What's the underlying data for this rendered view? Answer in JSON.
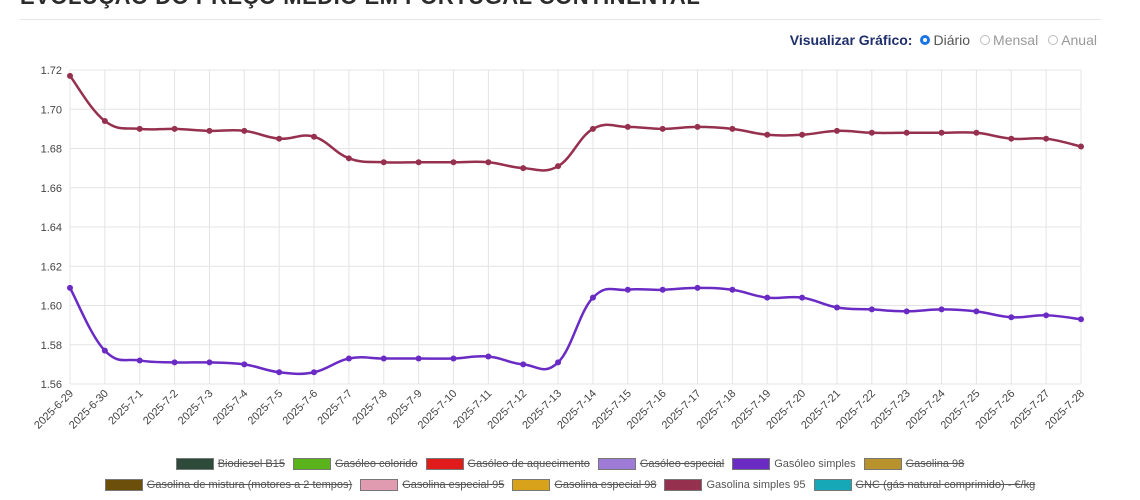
{
  "page": {
    "title": "EVOLUÇÃO DO PREÇO MÉDIO EM PORTUGAL CONTINENTAL",
    "view_label": "Visualizar Gráfico:",
    "view_options": [
      {
        "label": "Diário",
        "checked": true
      },
      {
        "label": "Mensal",
        "checked": false
      },
      {
        "label": "Anual",
        "checked": false
      }
    ]
  },
  "chart_data": {
    "type": "line",
    "x": [
      "2025-6-29",
      "2025-6-30",
      "2025-7-1",
      "2025-7-2",
      "2025-7-3",
      "2025-7-4",
      "2025-7-5",
      "2025-7-6",
      "2025-7-7",
      "2025-7-8",
      "2025-7-9",
      "2025-7-10",
      "2025-7-11",
      "2025-7-12",
      "2025-7-13",
      "2025-7-14",
      "2025-7-15",
      "2025-7-16",
      "2025-7-17",
      "2025-7-18",
      "2025-7-19",
      "2025-7-20",
      "2025-7-21",
      "2025-7-22",
      "2025-7-23",
      "2025-7-24",
      "2025-7-25",
      "2025-7-26",
      "2025-7-27",
      "2025-7-28"
    ],
    "ylim": [
      1.56,
      1.72
    ],
    "yticks": [
      "1.56",
      "1.58",
      "1.60",
      "1.62",
      "1.64",
      "1.66",
      "1.68",
      "1.70",
      "1.72"
    ],
    "grid": true,
    "legend_position": "bottom",
    "series": [
      {
        "name": "Gasolina simples 95",
        "color": "#96304f",
        "values": [
          1.717,
          1.694,
          1.69,
          1.69,
          1.689,
          1.689,
          1.685,
          1.686,
          1.675,
          1.673,
          1.673,
          1.673,
          1.673,
          1.67,
          1.671,
          1.69,
          1.691,
          1.69,
          1.691,
          1.69,
          1.687,
          1.687,
          1.689,
          1.688,
          1.688,
          1.688,
          1.688,
          1.685,
          1.685,
          1.681
        ]
      },
      {
        "name": "Gasóleo simples",
        "color": "#6a2bc4",
        "values": [
          1.609,
          1.577,
          1.572,
          1.571,
          1.571,
          1.57,
          1.566,
          1.566,
          1.573,
          1.573,
          1.573,
          1.573,
          1.574,
          1.57,
          1.571,
          1.604,
          1.608,
          1.608,
          1.609,
          1.608,
          1.604,
          1.604,
          1.599,
          1.598,
          1.597,
          1.598,
          1.597,
          1.594,
          1.595,
          1.593
        ]
      }
    ]
  },
  "legend": {
    "rows": [
      [
        {
          "label": "Biodiesel B15",
          "color": "#2d4a3a",
          "active": false
        },
        {
          "label": "Gasóleo colorido",
          "color": "#5bb31c",
          "active": false
        },
        {
          "label": "Gasóleo de aquecimento",
          "color": "#e01b1b",
          "active": false
        },
        {
          "label": "Gasóleo especial",
          "color": "#9e7bd6",
          "active": false
        },
        {
          "label": "Gasóleo simples",
          "color": "#6a2bc4",
          "active": true
        },
        {
          "label": "Gasolina 98",
          "color": "#b8922a",
          "active": false
        }
      ],
      [
        {
          "label": "Gasolina de mistura (motores a 2 tempos)",
          "color": "#6b4f0a",
          "active": false
        },
        {
          "label": "Gasolina especial 95",
          "color": "#e09bb0",
          "active": false
        },
        {
          "label": "Gasolina especial 98",
          "color": "#d9a21b",
          "active": false
        },
        {
          "label": "Gasolina simples 95",
          "color": "#96304f",
          "active": true
        },
        {
          "label": "GNC (gás natural comprimido) - €/kg",
          "color": "#17a8b8",
          "active": false
        }
      ]
    ]
  }
}
